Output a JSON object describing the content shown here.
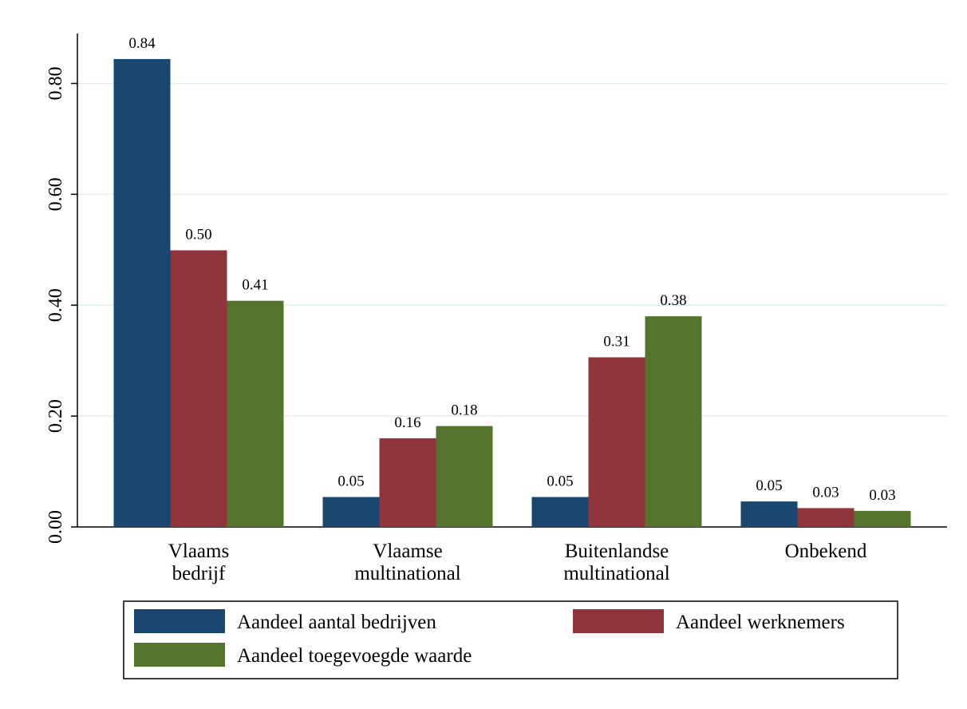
{
  "chart_data": {
    "type": "bar",
    "categories": [
      "Vlaams bedrijf",
      "Vlaamse multinational",
      "Buitenlandse multinational",
      "Onbekend"
    ],
    "series": [
      {
        "name": "Aandeel aantal bedrijven",
        "color": "#1a476f",
        "values": [
          0.844,
          0.054,
          0.054,
          0.046
        ],
        "value_labels": [
          "0.84",
          "0.05",
          "0.05",
          "0.05"
        ]
      },
      {
        "name": "Aandeel werknemers",
        "color": "#90353b",
        "values": [
          0.499,
          0.16,
          0.306,
          0.034
        ],
        "value_labels": [
          "0.50",
          "0.16",
          "0.31",
          "0.03"
        ]
      },
      {
        "name": "Aandeel toegevoegde waarde",
        "color": "#55752f",
        "values": [
          0.408,
          0.182,
          0.38,
          0.029
        ],
        "value_labels": [
          "0.41",
          "0.18",
          "0.38",
          "0.03"
        ]
      }
    ],
    "ylim": [
      0,
      0.89
    ],
    "yticks": [
      {
        "value": 0,
        "label": "0.00"
      },
      {
        "value": 0.2,
        "label": "0.20"
      },
      {
        "value": 0.4,
        "label": "0.40"
      },
      {
        "value": 0.6,
        "label": "0.60"
      },
      {
        "value": 0.8,
        "label": "0.80"
      }
    ],
    "grid": true
  }
}
